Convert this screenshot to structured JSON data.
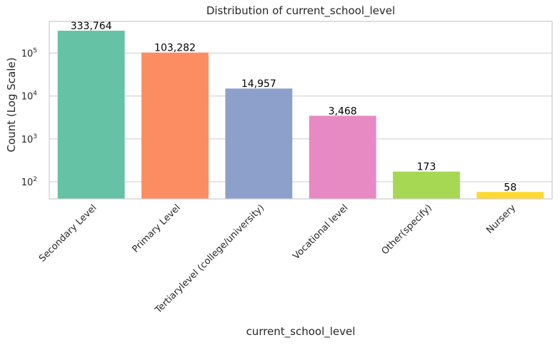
{
  "chart_data": {
    "type": "bar",
    "title": "Distribution of current_school_level",
    "xlabel": "current_school_level",
    "ylabel": "Count (Log Scale)",
    "y_scale": "log",
    "ylim": [
      40,
      550000
    ],
    "y_ticks": [
      {
        "value": 100,
        "base": "10",
        "exp": "2"
      },
      {
        "value": 1000,
        "base": "10",
        "exp": "3"
      },
      {
        "value": 10000,
        "base": "10",
        "exp": "4"
      },
      {
        "value": 100000,
        "base": "10",
        "exp": "5"
      }
    ],
    "grid": true,
    "legend": "none",
    "categories": [
      "Secondary Level",
      "Primary Level",
      "Tertiarylevel (college/university)",
      "Vocational level",
      "Other(specify)",
      "Nursery"
    ],
    "values": [
      333764,
      103282,
      14957,
      3468,
      173,
      58
    ],
    "value_labels": [
      "333,764",
      "103,282",
      "14,957",
      "3,468",
      "173",
      "58"
    ],
    "colors": [
      "#66c2a5",
      "#fc8d62",
      "#8da0cb",
      "#e78ac3",
      "#a6d854",
      "#ffd92f"
    ]
  }
}
